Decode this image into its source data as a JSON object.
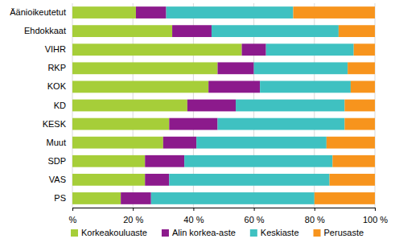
{
  "chart_data": {
    "type": "bar",
    "orientation": "horizontal",
    "stacked": true,
    "grid": true,
    "legend": "bottom",
    "categories": [
      "Äänioikeutetut",
      "Ehdokkaat",
      "VIHR",
      "RKP",
      "KOK",
      "KD",
      "KESK",
      "Muut",
      "SDP",
      "VAS",
      "PS"
    ],
    "series": [
      {
        "name": "Korkeakouluaste",
        "color": "#a6ce39",
        "values": [
          21,
          33,
          56,
          48,
          45,
          38,
          32,
          30,
          24,
          24,
          16
        ]
      },
      {
        "name": "Alin korkea-aste",
        "color": "#8c1a8c",
        "values": [
          10,
          13,
          8,
          12,
          17,
          16,
          16,
          11,
          13,
          8,
          10
        ]
      },
      {
        "name": "Keskiaste",
        "color": "#3fc1c1",
        "values": [
          42,
          42,
          29,
          31,
          30,
          36,
          42,
          43,
          49,
          53,
          54
        ]
      },
      {
        "name": "Perusaste",
        "color": "#f7941d",
        "values": [
          27,
          12,
          7,
          9,
          8,
          10,
          10,
          16,
          14,
          15,
          20
        ]
      }
    ],
    "xlim": [
      0,
      100
    ],
    "xticks": [
      {
        "value": 0,
        "label": "%"
      },
      {
        "value": 20,
        "label": "20 %"
      },
      {
        "value": 40,
        "label": "40 %"
      },
      {
        "value": 60,
        "label": "60 %"
      },
      {
        "value": 80,
        "label": "80 %"
      },
      {
        "value": 100,
        "label": "100 %"
      }
    ]
  }
}
